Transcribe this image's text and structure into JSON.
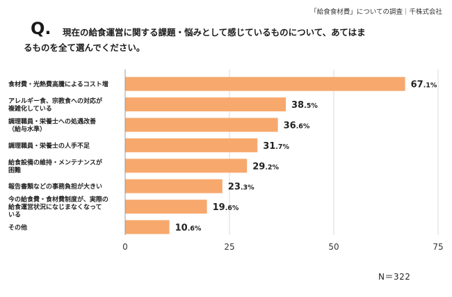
{
  "header": {
    "source": "「給食食材費」についての調査｜千株式会社",
    "q_mark": "Q.",
    "question_line1": "現在の給食運営に関する課題・悩みとして感じているものについて、あてはま",
    "question_line2": "るものを全て選んでください。"
  },
  "footer": {
    "n_label": "N＝322"
  },
  "colors": {
    "bar": "#f7a86d",
    "grid": "#d9d9d9",
    "text": "#222222"
  },
  "chart_data": {
    "type": "bar",
    "orientation": "horizontal",
    "categories": [
      [
        "食材費・光熱費高騰によるコスト増"
      ],
      [
        "アレルギー食、宗教食への対応が",
        "複雑化している"
      ],
      [
        "調理職員・栄養士への処遇改善",
        "（給与水準）"
      ],
      [
        "調理職員・栄養士の人手不足"
      ],
      [
        "給食設備の維持・メンテナンスが",
        "困難"
      ],
      [
        "報告書類などの事務負担が大きい"
      ],
      [
        "今の給食費・食材費制度が、実際の",
        "給食運営状況になじまなくなって",
        "いる"
      ],
      [
        "その他"
      ]
    ],
    "values": [
      67.1,
      38.5,
      36.6,
      31.7,
      29.2,
      23.3,
      19.6,
      10.6
    ],
    "value_labels": [
      {
        "int": "67",
        "dec": ".1%"
      },
      {
        "int": "38",
        "dec": ".5%"
      },
      {
        "int": "36",
        "dec": ".6%"
      },
      {
        "int": "31",
        "dec": ".7%"
      },
      {
        "int": "29",
        "dec": ".2%"
      },
      {
        "int": "23",
        "dec": ".3%"
      },
      {
        "int": "19",
        "dec": ".6%"
      },
      {
        "int": "10",
        "dec": ".6%"
      }
    ],
    "xlim": [
      0,
      75
    ],
    "xticks": [
      "0",
      "25",
      "50",
      "75"
    ],
    "grid": true,
    "xlabel": "",
    "ylabel": ""
  }
}
